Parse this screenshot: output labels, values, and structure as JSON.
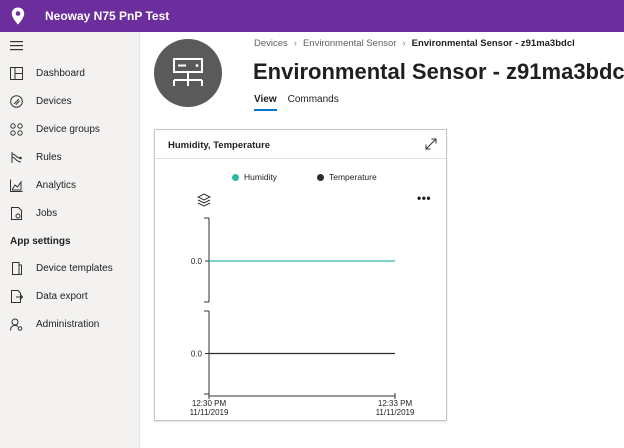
{
  "app": {
    "title": "Neoway N75 PnP Test",
    "brand_color": "#6b2e9c",
    "logo_icon": "map-pin-icon"
  },
  "sidebar": {
    "menu_icon": "hamburger-icon",
    "items": [
      {
        "label": "Dashboard",
        "icon": "dashboard-icon"
      },
      {
        "label": "Devices",
        "icon": "devices-icon"
      },
      {
        "label": "Device groups",
        "icon": "device-groups-icon"
      },
      {
        "label": "Rules",
        "icon": "rules-icon"
      },
      {
        "label": "Analytics",
        "icon": "analytics-icon"
      },
      {
        "label": "Jobs",
        "icon": "jobs-icon"
      }
    ],
    "section_heading": "App settings",
    "settings_items": [
      {
        "label": "Device templates",
        "icon": "device-templates-icon"
      },
      {
        "label": "Data export",
        "icon": "data-export-icon"
      },
      {
        "label": "Administration",
        "icon": "administration-icon"
      }
    ]
  },
  "breadcrumb": {
    "items": [
      "Devices",
      "Environmental Sensor",
      "Environmental Sensor - z91ma3bdcl"
    ]
  },
  "page": {
    "title": "Environmental Sensor - z91ma3bdcl",
    "device_icon": "network-device-icon",
    "tabs": [
      {
        "label": "View",
        "active": true
      },
      {
        "label": "Commands",
        "active": false
      }
    ]
  },
  "card": {
    "title": "Humidity, Temperature",
    "expand_icon": "expand-icon",
    "layers_icon": "layers-icon",
    "more_label": "•••"
  },
  "chart_data": {
    "type": "line",
    "title": "Humidity, Temperature",
    "x": [
      "12:30 PM\n11/11/2019",
      "12:33 PM\n11/11/2019"
    ],
    "x_tick_labels": [
      {
        "time": "12:30 PM",
        "date": "11/11/2019"
      },
      {
        "time": "12:33 PM",
        "date": "11/11/2019"
      }
    ],
    "series": [
      {
        "name": "Humidity",
        "color": "#2fb9a7",
        "values": [
          0.0,
          0.0
        ],
        "y_tick_label": "0.0"
      },
      {
        "name": "Temperature",
        "color": "#2d2d2d",
        "values": [
          0.0,
          0.0
        ],
        "y_tick_label": "0.0"
      }
    ],
    "legend_position": "top",
    "grid": false
  }
}
